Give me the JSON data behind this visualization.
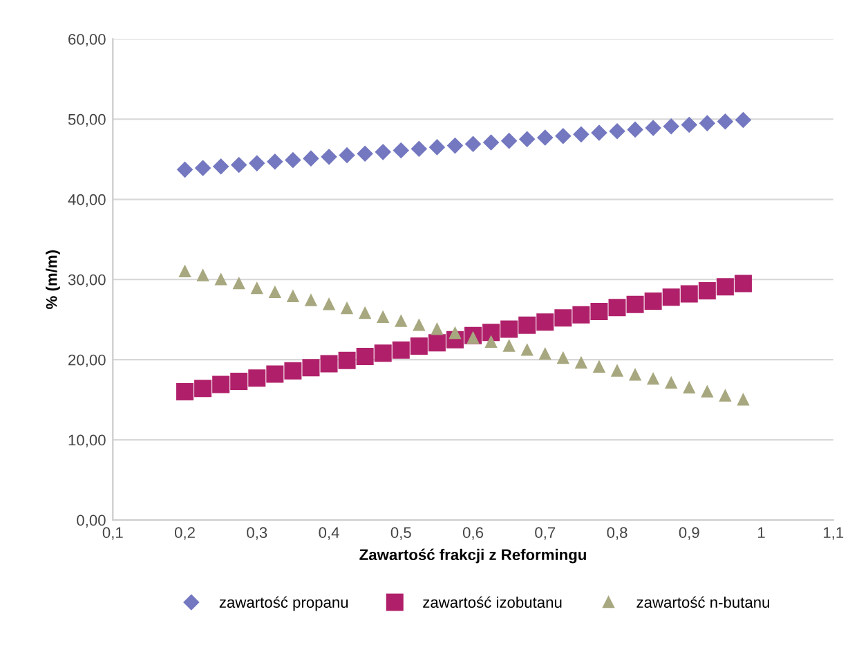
{
  "chart_data": {
    "type": "scatter",
    "xlabel": "Zawartość frakcji z Reformingu",
    "ylabel": "% (m/m)",
    "x": [
      0.2,
      0.225,
      0.25,
      0.275,
      0.3,
      0.325,
      0.35,
      0.375,
      0.4,
      0.425,
      0.45,
      0.475,
      0.5,
      0.525,
      0.55,
      0.575,
      0.6,
      0.625,
      0.65,
      0.675,
      0.7,
      0.725,
      0.75,
      0.775,
      0.8,
      0.825,
      0.85,
      0.875,
      0.9,
      0.925,
      0.95,
      0.975
    ],
    "series": [
      {
        "name": "zawartość propanu",
        "color": "#7478c0",
        "marker": "diamond",
        "values": [
          43.7,
          43.9,
          44.1,
          44.3,
          44.5,
          44.7,
          44.9,
          45.1,
          45.3,
          45.5,
          45.7,
          45.9,
          46.1,
          46.3,
          46.5,
          46.7,
          46.9,
          47.1,
          47.3,
          47.5,
          47.7,
          47.9,
          48.1,
          48.3,
          48.5,
          48.7,
          48.9,
          49.1,
          49.3,
          49.5,
          49.7,
          49.9
        ]
      },
      {
        "name": "zawartość izobutanu",
        "color": "#b0206a",
        "marker": "square",
        "values": [
          16.0,
          16.4,
          16.9,
          17.3,
          17.7,
          18.2,
          18.6,
          19.0,
          19.5,
          19.9,
          20.4,
          20.8,
          21.2,
          21.7,
          22.1,
          22.5,
          23.0,
          23.4,
          23.8,
          24.3,
          24.7,
          25.2,
          25.6,
          26.0,
          26.5,
          26.9,
          27.3,
          27.8,
          28.2,
          28.6,
          29.1,
          29.5
        ]
      },
      {
        "name": "zawartość n-butanu",
        "color": "#a8a880",
        "marker": "triangle",
        "values": [
          31.0,
          30.5,
          30.0,
          29.5,
          28.9,
          28.4,
          27.9,
          27.4,
          26.9,
          26.4,
          25.8,
          25.3,
          24.8,
          24.3,
          23.8,
          23.3,
          22.7,
          22.2,
          21.7,
          21.2,
          20.7,
          20.2,
          19.6,
          19.1,
          18.6,
          18.1,
          17.6,
          17.1,
          16.5,
          16.0,
          15.5,
          15.0
        ]
      }
    ],
    "xlim": [
      0.1,
      1.1
    ],
    "xticks": [
      {
        "value": 0.1,
        "label": "0,1"
      },
      {
        "value": 0.2,
        "label": "0,2"
      },
      {
        "value": 0.3,
        "label": "0,3"
      },
      {
        "value": 0.4,
        "label": "0,4"
      },
      {
        "value": 0.5,
        "label": "0,5"
      },
      {
        "value": 0.6,
        "label": "0,6"
      },
      {
        "value": 0.7,
        "label": "0,7"
      },
      {
        "value": 0.8,
        "label": "0,8"
      },
      {
        "value": 0.9,
        "label": "0,9"
      },
      1,
      {
        "value": 1.1,
        "label": "1,1"
      }
    ],
    "ylim": [
      0,
      60
    ],
    "yticks": [
      {
        "value": 0,
        "label": "0,00"
      },
      {
        "value": 10,
        "label": "10,00"
      },
      {
        "value": 20,
        "label": "20,00"
      },
      {
        "value": 30,
        "label": "30,00"
      },
      {
        "value": 40,
        "label": "40,00"
      },
      {
        "value": 50,
        "label": "50,00"
      },
      {
        "value": 60,
        "label": "60,00"
      }
    ],
    "grid": "y",
    "legend": "bottom"
  }
}
